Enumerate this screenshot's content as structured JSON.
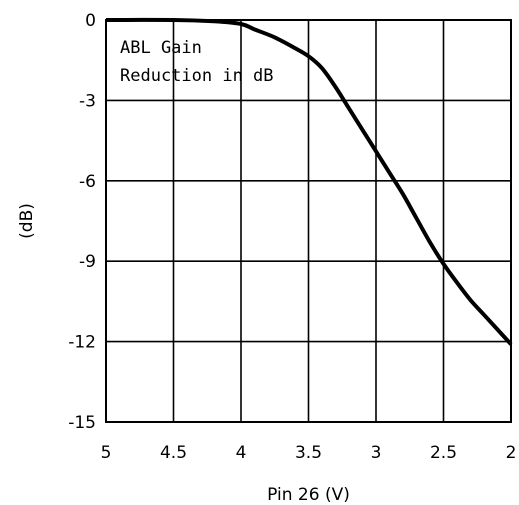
{
  "chart_data": {
    "type": "line",
    "title": "",
    "xlabel": "Pin 26 (V)",
    "ylabel": "(dB)",
    "annotation": [
      "ABL Gain",
      "Reduction in dB"
    ],
    "xlim": [
      5,
      2
    ],
    "ylim": [
      -15,
      0
    ],
    "x_reversed": true,
    "grid": true,
    "x_ticks": [
      5,
      4.5,
      4,
      3.5,
      3,
      2.5,
      2
    ],
    "x_tick_labels": [
      "5",
      "4.5",
      "4",
      "3.5",
      "3",
      "2.5",
      "2"
    ],
    "y_ticks": [
      0,
      -3,
      -6,
      -9,
      -12,
      -15
    ],
    "y_tick_labels": [
      "0",
      "-3",
      "-6",
      "-9",
      "-12",
      "-15"
    ],
    "series": [
      {
        "color": "#000000",
        "x": [
          5.0,
          4.5,
          4.2,
          4.0,
          3.9,
          3.75,
          3.6,
          3.5,
          3.4,
          3.3,
          3.2,
          3.1,
          3.0,
          2.9,
          2.8,
          2.7,
          2.6,
          2.5,
          2.4,
          2.3,
          2.2,
          2.1,
          2.0
        ],
        "y": [
          0,
          0,
          -0.05,
          -0.15,
          -0.35,
          -0.65,
          -1.05,
          -1.35,
          -1.8,
          -2.5,
          -3.3,
          -4.1,
          -4.9,
          -5.7,
          -6.5,
          -7.4,
          -8.3,
          -9.1,
          -9.8,
          -10.45,
          -11.0,
          -11.55,
          -12.1
        ]
      }
    ]
  }
}
